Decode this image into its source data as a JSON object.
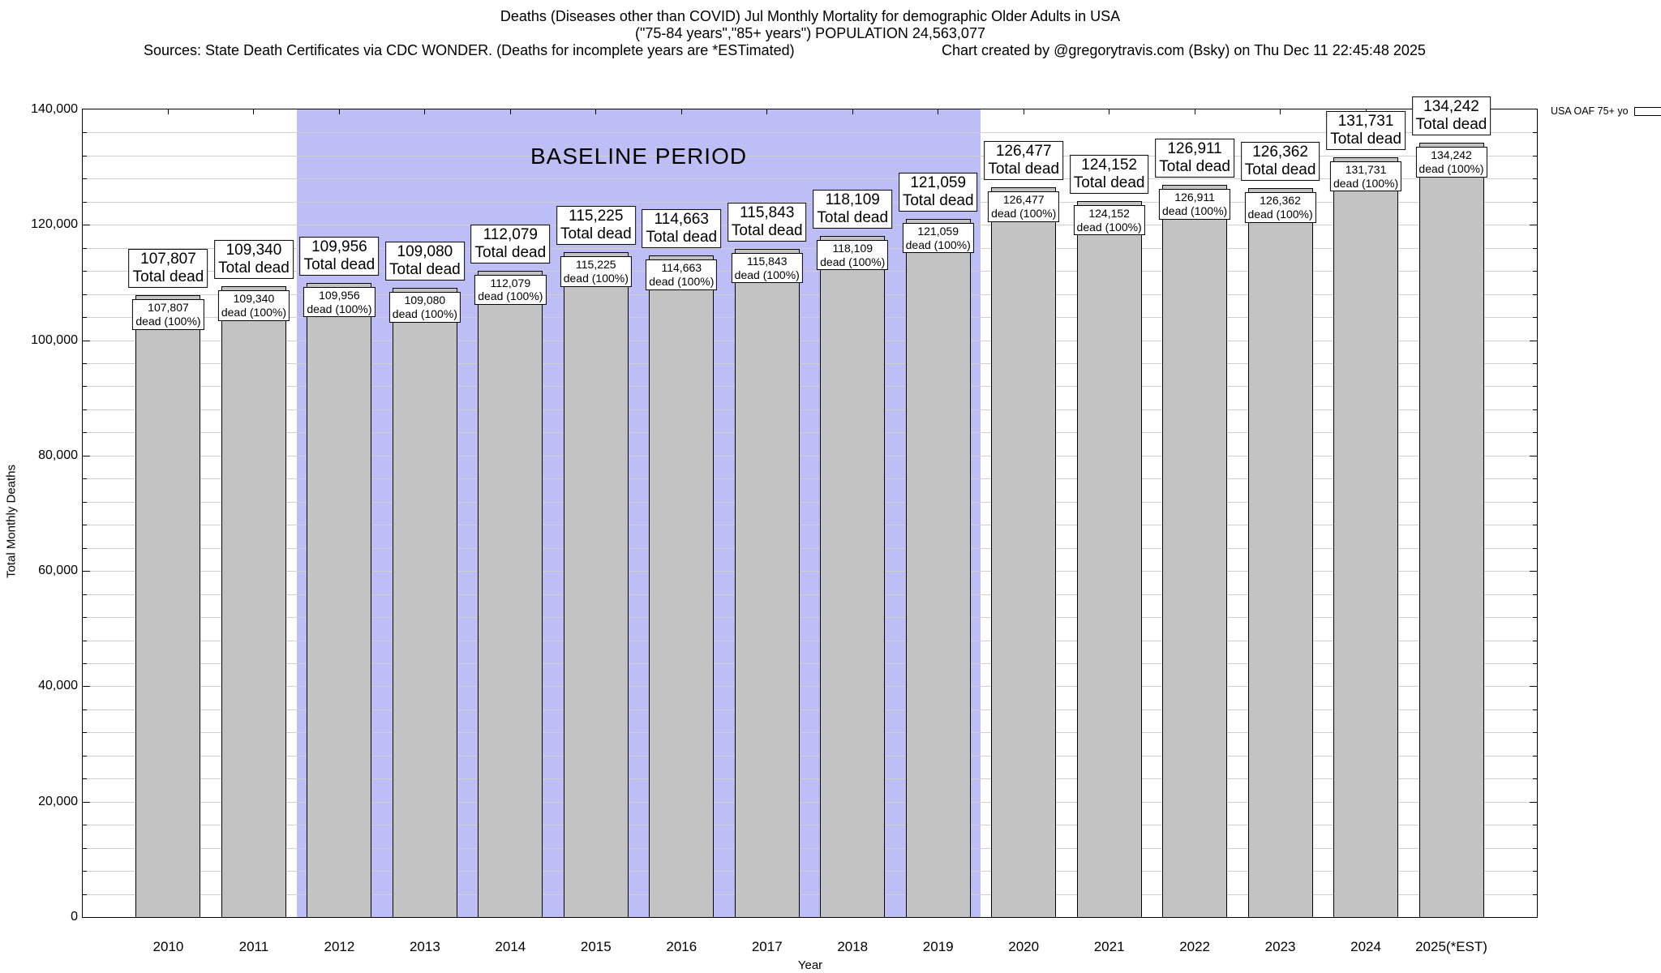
{
  "header": {
    "title_line1": "Deaths (Diseases other than COVID) Jul Monthly Mortality for demographic Older Adults in USA",
    "title_line2": "(\"75-84 years\",\"85+ years\") POPULATION 24,563,077",
    "sources": "Sources: State Death Certificates via CDC WONDER. (Deaths for incomplete years are *ESTimated)",
    "credit": "Chart created by @gregorytravis.com (Bsky) on Thu Dec 11 22:45:48 2025"
  },
  "legend": {
    "label": "USA OAF 75+ yo",
    "swatch_color": "#c3c3c3"
  },
  "chart_data": {
    "type": "bar",
    "title": "Deaths (Diseases other than COVID) Jul Monthly Mortality for demographic Older Adults in USA",
    "subtitle": "(\"75-84 years\",\"85+ years\") POPULATION 24,563,077",
    "xlabel": "Year",
    "ylabel": "Total Monthly Deaths",
    "ylim": [
      0,
      140000
    ],
    "ytick_interval": 20000,
    "minor_gridline_interval": 4000,
    "grid": true,
    "legend_position": "top-right-outside",
    "ytick_labels": [
      "0",
      "20,000",
      "40,000",
      "60,000",
      "80,000",
      "100,000",
      "120,000",
      "140,000"
    ],
    "categories": [
      "2010",
      "2011",
      "2012",
      "2013",
      "2014",
      "2015",
      "2016",
      "2017",
      "2018",
      "2019",
      "2020",
      "2021",
      "2022",
      "2023",
      "2024",
      "2025(*EST)"
    ],
    "values": [
      107807,
      109340,
      109956,
      109080,
      112079,
      115225,
      114663,
      115843,
      118109,
      121059,
      126477,
      124152,
      126911,
      126362,
      131731,
      134242
    ],
    "bar_color": "#c3c3c3",
    "annotation_above_suffix": "Total dead",
    "annotation_inside_suffix": "dead (100%)",
    "baseline_band": {
      "label": "BASELINE PERIOD",
      "start_category": "2012",
      "end_category": "2019",
      "color": "#bebef7"
    }
  }
}
